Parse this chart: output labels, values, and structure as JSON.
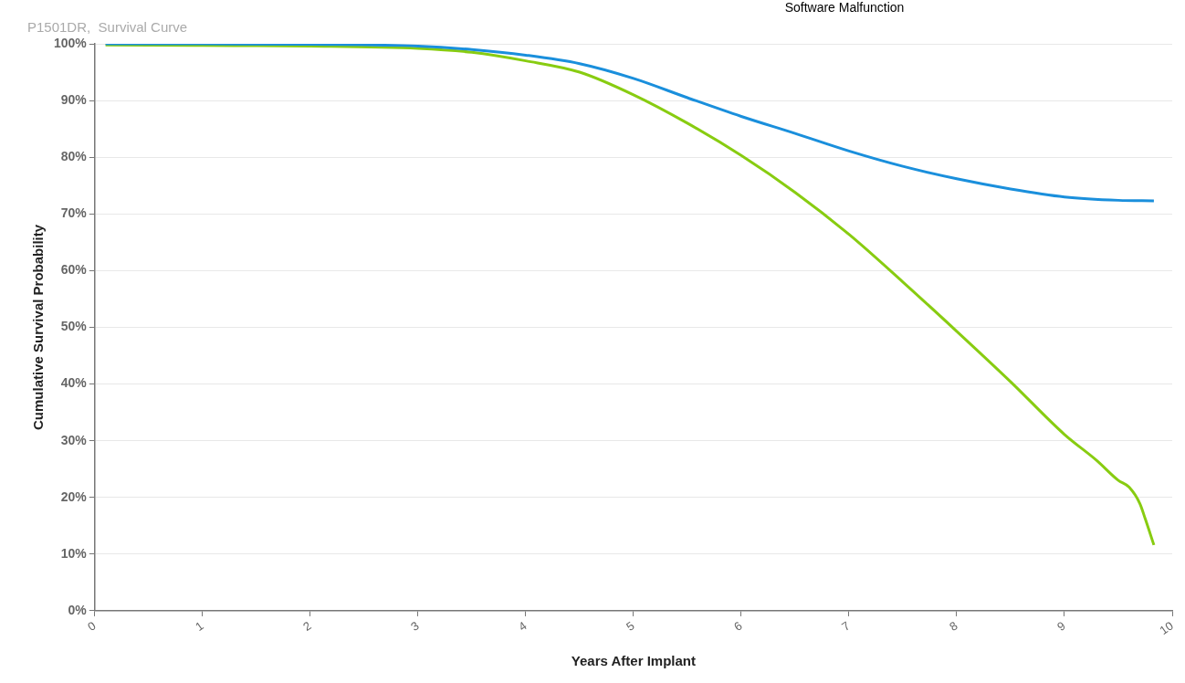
{
  "chart_data": {
    "type": "line",
    "title": "P1501DR,  Survival Curve",
    "xlabel": "Years After Implant",
    "ylabel": "Cumulative Survival Probability",
    "annotations": [
      "Software Malfunction"
    ],
    "xlim": [
      0,
      10
    ],
    "xticks": [
      0,
      1,
      2,
      3,
      4,
      5,
      6,
      7,
      8,
      9,
      10
    ],
    "ylim": [
      0,
      100
    ],
    "yticks": [
      {
        "value": 0,
        "label": "0%"
      },
      {
        "value": 10,
        "label": "10%"
      },
      {
        "value": 20,
        "label": "20%"
      },
      {
        "value": 30,
        "label": "30%"
      },
      {
        "value": 40,
        "label": "40%"
      },
      {
        "value": 50,
        "label": "50%"
      },
      {
        "value": 60,
        "label": "60%"
      },
      {
        "value": 70,
        "label": "70%"
      },
      {
        "value": 80,
        "label": "80%"
      },
      {
        "value": 90,
        "label": "90%"
      },
      {
        "value": 100,
        "label": "100%"
      }
    ],
    "grid": "y",
    "legend": false,
    "marker": "none",
    "line_style": "solid",
    "series": [
      {
        "color": "#1a8fdc",
        "x": [
          0.1,
          1,
          2,
          3,
          3.5,
          4,
          4.5,
          5,
          5.5,
          6,
          6.5,
          7,
          7.5,
          8,
          8.5,
          9,
          9.5,
          9.83
        ],
        "values": [
          100,
          100,
          99.9,
          99.6,
          99,
          98,
          96.5,
          93.9,
          90.5,
          87.2,
          84.2,
          81.1,
          78.4,
          76.2,
          74.4,
          73,
          72.4,
          72.3
        ]
      },
      {
        "color": "#88cc11",
        "x": [
          0.1,
          1,
          2,
          3,
          3.5,
          4,
          4.5,
          5,
          5.5,
          6,
          6.5,
          7,
          7.5,
          8,
          8.5,
          9,
          9.3,
          9.5,
          9.6,
          9.7,
          9.75,
          9.83
        ],
        "values": [
          99.8,
          99.7,
          99.6,
          99.2,
          98.5,
          97,
          95,
          91,
          86,
          80.3,
          73.8,
          66.4,
          58,
          49.3,
          40.4,
          31.1,
          26.5,
          23,
          21.8,
          18.9,
          16.2,
          11.6
        ]
      }
    ]
  }
}
